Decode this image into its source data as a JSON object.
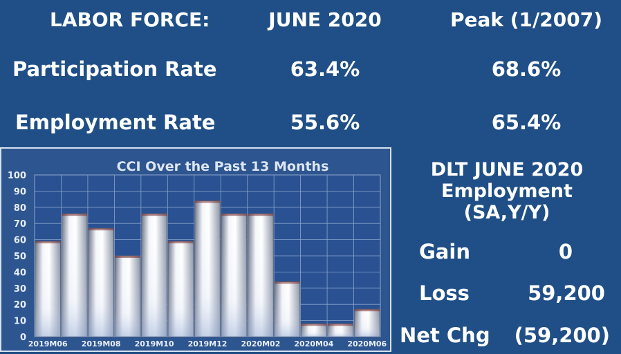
{
  "labor_force": {
    "header_label": "LABOR FORCE:",
    "col_current": "JUNE 2020",
    "col_peak": "Peak (1/2007)",
    "rows": [
      {
        "label": "Participation Rate",
        "current": "63.4%",
        "peak": "68.6%"
      },
      {
        "label": "Employment Rate",
        "current": "55.6%",
        "peak": "65.4%"
      }
    ]
  },
  "dlt": {
    "title_line1": "DLT JUNE 2020",
    "title_line2": "Employment",
    "title_line3": "(SA,Y/Y)",
    "rows": [
      {
        "label": "Gain",
        "value": "0"
      },
      {
        "label": "Loss",
        "value": "59,200"
      },
      {
        "label": "Net Chg",
        "value": "(59,200)"
      }
    ]
  },
  "colors": {
    "background": "#1f4f86",
    "plot_background": "#2d5590",
    "bar_light": "#ffffff",
    "bar_dark": "#8b93a6",
    "grid": "#8aa4cc"
  },
  "chart_data": {
    "type": "bar",
    "title": "CCI Over the Past 13 Months",
    "categories": [
      "2019M06",
      "2019M07",
      "2019M08",
      "2019M09",
      "2019M10",
      "2019M11",
      "2019M12",
      "2020M01",
      "2020M02",
      "2020M03",
      "2020M04",
      "2020M05",
      "2020M06"
    ],
    "tick_labels": [
      "2019M06",
      "2019M08",
      "2019M10",
      "2019M12",
      "2020M02",
      "2020M04",
      "2020M06"
    ],
    "values": [
      59,
      76,
      67,
      50,
      76,
      59,
      84,
      76,
      76,
      34,
      8,
      8,
      17
    ],
    "ylim": [
      0,
      100
    ],
    "yticks": [
      0,
      10,
      20,
      30,
      40,
      50,
      60,
      70,
      80,
      90,
      100
    ],
    "grid": true,
    "xlabel": "",
    "ylabel": ""
  }
}
